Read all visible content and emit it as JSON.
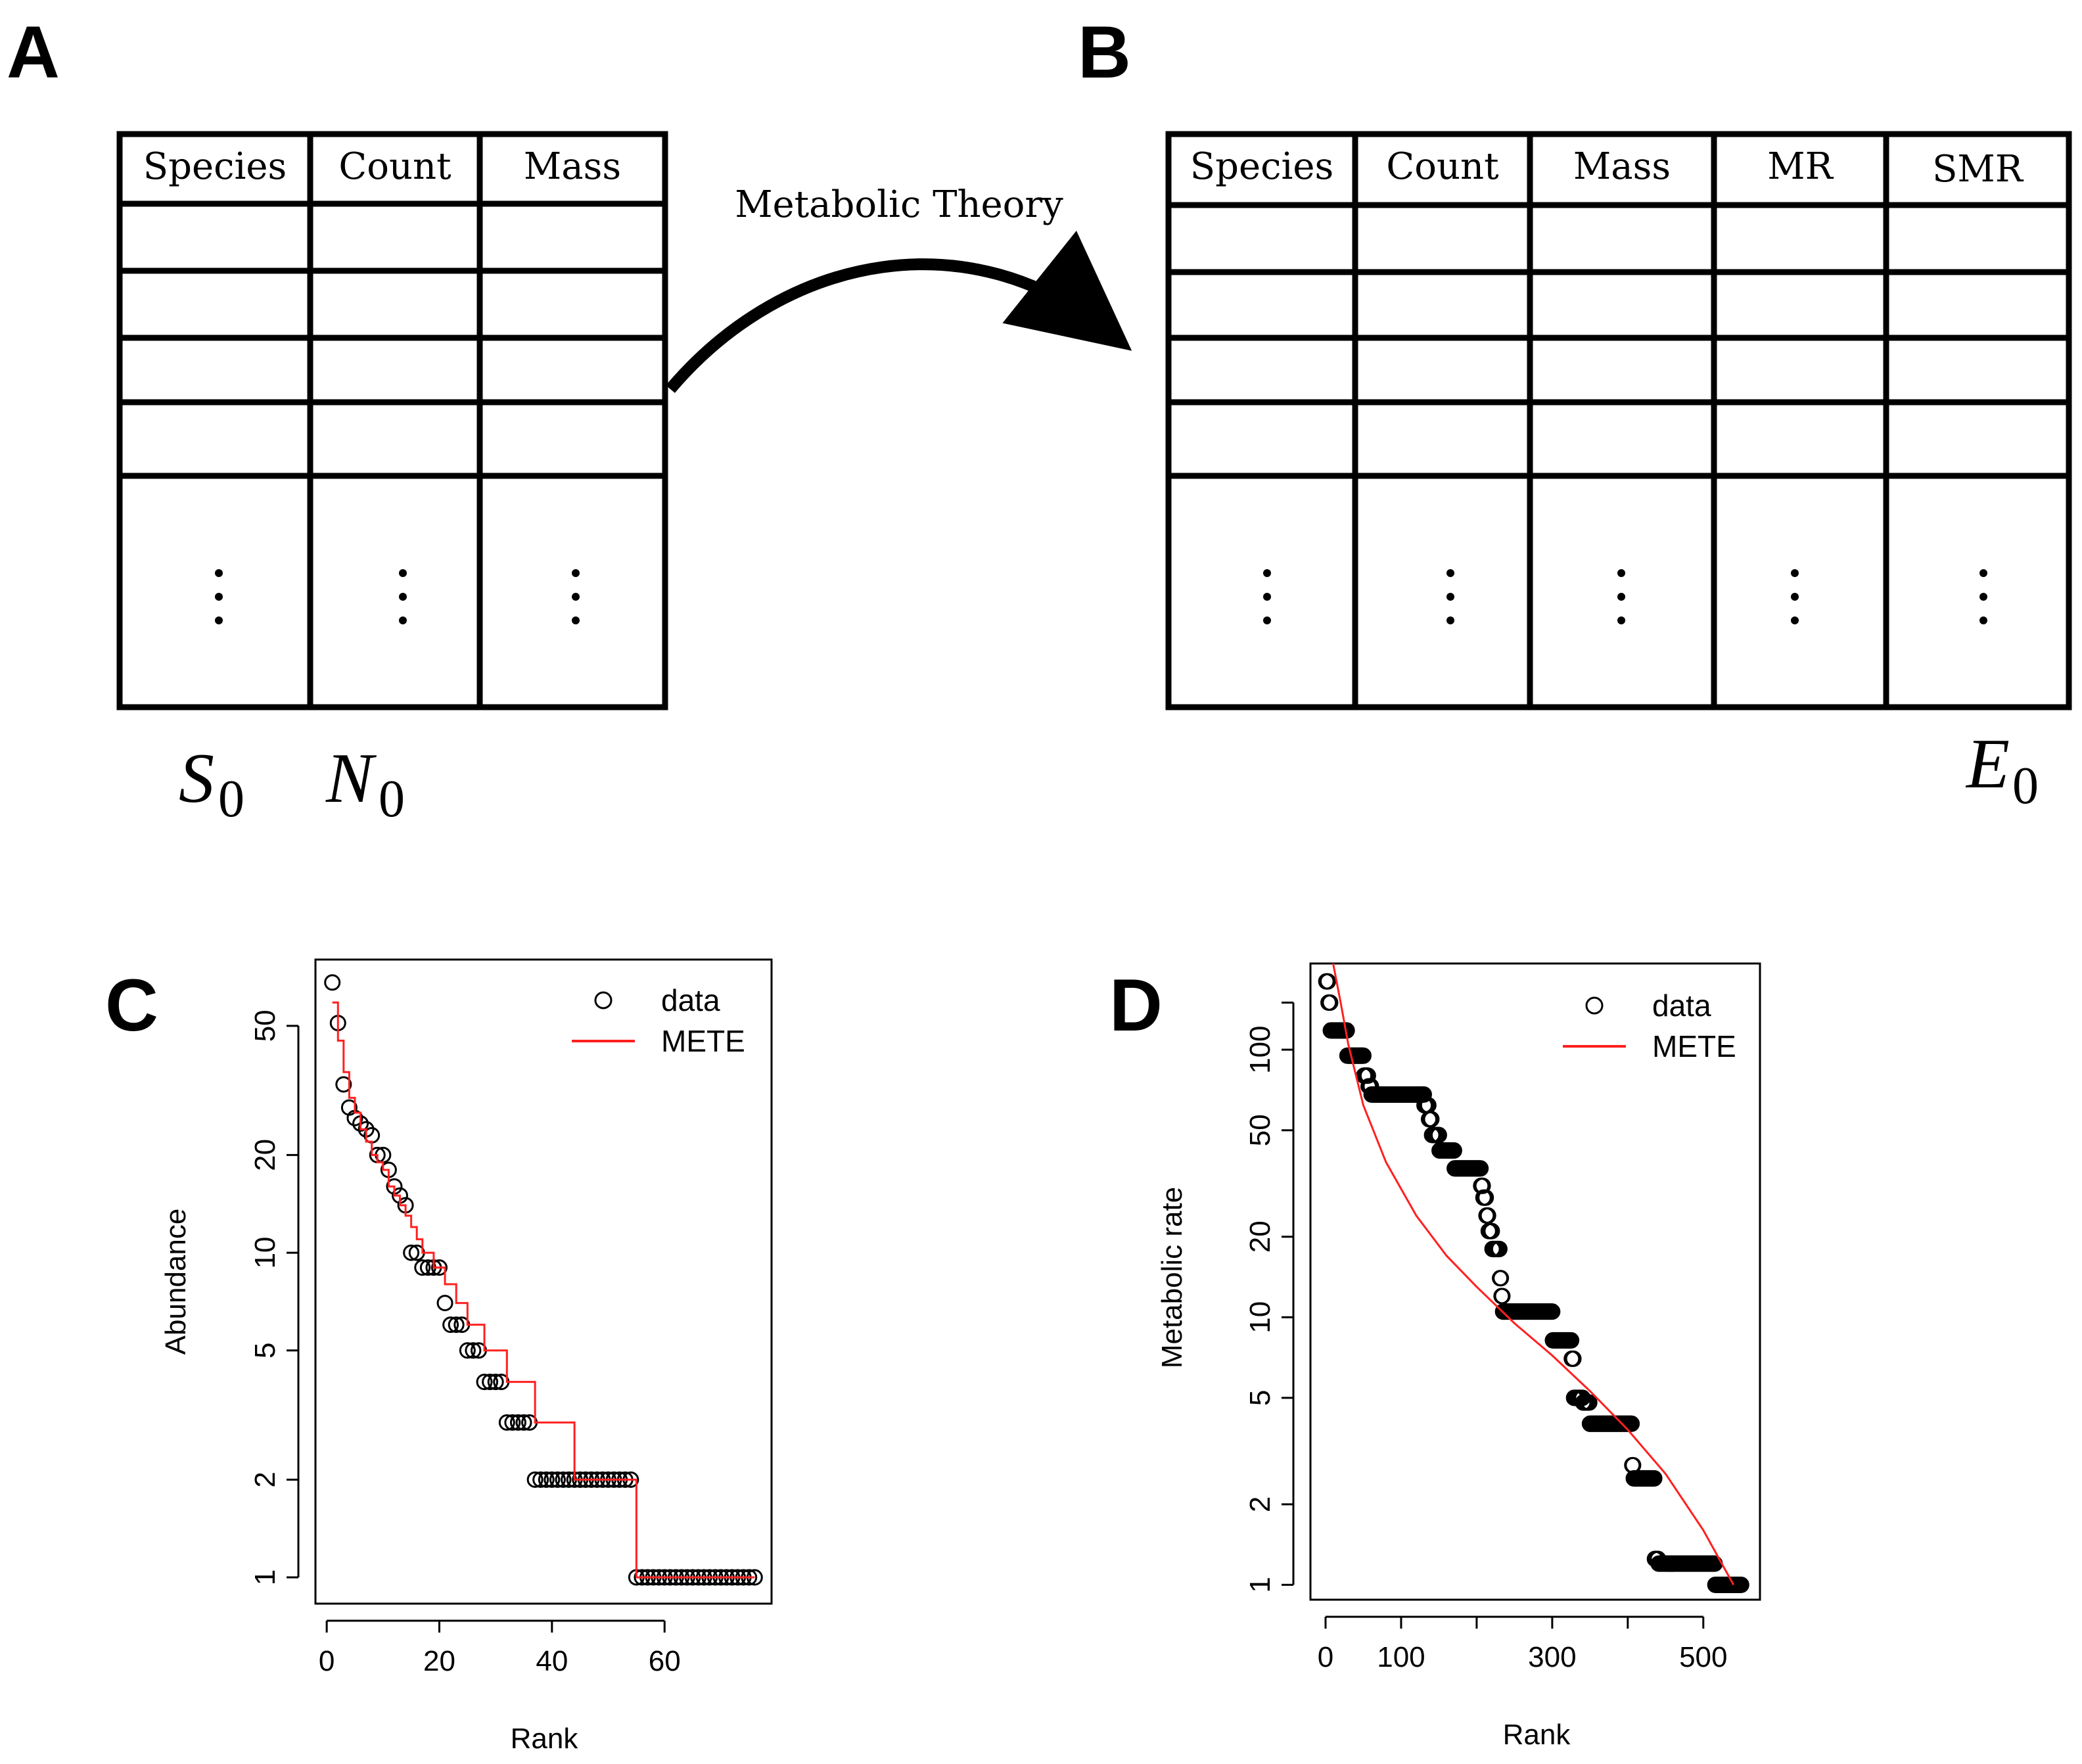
{
  "panels": {
    "a": "A",
    "b": "B",
    "c": "C",
    "d": "D"
  },
  "table_a": {
    "headers": [
      "Species",
      "Count",
      "Mass"
    ],
    "bottom_labels": [
      {
        "var": "S",
        "sub": "0"
      },
      {
        "var": "N",
        "sub": "0"
      }
    ]
  },
  "arrow_label": "Metabolic Theory",
  "table_b": {
    "headers": [
      "Species",
      "Count",
      "Mass",
      "MR",
      "SMR"
    ],
    "bottom_label": {
      "var": "E",
      "sub": "0"
    }
  },
  "chart_data": [
    {
      "type": "scatter",
      "panel": "C",
      "xlabel": "Rank",
      "ylabel": "Abundance",
      "log_y": true,
      "xlim": [
        -2,
        79
      ],
      "ylim": [
        0.83,
        80
      ],
      "x_ticks": [
        0,
        20,
        40,
        60
      ],
      "y_ticks": [
        1,
        2,
        5,
        10,
        20,
        50
      ],
      "legend_position": "top-right",
      "legend": [
        "data",
        "METE"
      ],
      "colors": {
        "data": "#000000",
        "METE": "#ff2020"
      },
      "series": [
        {
          "name": "data",
          "style": "open-circle",
          "x": [
            1,
            2,
            3,
            4,
            5,
            6,
            7,
            8,
            9,
            10,
            11,
            12,
            13,
            14,
            15,
            16,
            17,
            18,
            19,
            20,
            21,
            22,
            23,
            24,
            25,
            26,
            27,
            28,
            29,
            30,
            31,
            32,
            33,
            34,
            35,
            36,
            37,
            38,
            39,
            40,
            41,
            42,
            43,
            44,
            45,
            46,
            47,
            48,
            49,
            50,
            51,
            52,
            53,
            54,
            55,
            56,
            57,
            58,
            59,
            60,
            61,
            62,
            63,
            64,
            65,
            66,
            67,
            68,
            69,
            70,
            71,
            72,
            73,
            74,
            75,
            76
          ],
          "values": [
            68,
            51,
            33,
            28,
            26,
            25,
            24,
            23,
            20,
            20,
            18,
            16,
            15,
            14,
            10,
            10,
            9,
            9,
            9,
            9,
            7,
            6,
            6,
            6,
            5,
            5,
            5,
            4,
            4,
            4,
            4,
            3,
            3,
            3,
            3,
            3,
            2,
            2,
            2,
            2,
            2,
            2,
            2,
            2,
            2,
            2,
            2,
            2,
            2,
            2,
            2,
            2,
            2,
            2,
            1,
            1,
            1,
            1,
            1,
            1,
            1,
            1,
            1,
            1,
            1,
            1,
            1,
            1,
            1,
            1,
            1,
            1,
            1,
            1,
            1,
            1
          ]
        },
        {
          "name": "METE",
          "style": "line",
          "x": [
            1,
            2,
            3,
            4,
            5,
            6,
            7,
            8,
            9,
            10,
            11,
            12,
            13,
            14,
            15,
            16,
            17,
            18,
            19,
            20,
            21,
            22,
            23,
            24,
            25,
            26,
            27,
            28,
            29,
            30,
            31,
            32,
            33,
            34,
            35,
            36,
            37,
            38,
            39,
            40,
            41,
            42,
            43,
            44,
            45,
            46,
            47,
            48,
            49,
            50,
            51,
            52,
            53,
            54,
            55,
            56,
            57,
            58,
            59,
            60,
            61,
            62,
            63,
            64,
            65,
            66,
            67,
            68,
            69,
            70,
            71,
            72,
            73,
            74,
            75,
            76
          ],
          "values": [
            59,
            45,
            36,
            30,
            27,
            24,
            22,
            20,
            19,
            18,
            16,
            15,
            14,
            13,
            12,
            11,
            10,
            10,
            9,
            9,
            8,
            8,
            7,
            7,
            6,
            6,
            6,
            5,
            5,
            5,
            5,
            4,
            4,
            4,
            4,
            4,
            3,
            3,
            3,
            3,
            3,
            3,
            3,
            2,
            2,
            2,
            2,
            2,
            2,
            2,
            2,
            2,
            2,
            2,
            1,
            1,
            1,
            1,
            1,
            1,
            1,
            1,
            1,
            1,
            1,
            1,
            1,
            1,
            1,
            1,
            1,
            1,
            1,
            1,
            1,
            1
          ]
        }
      ]
    },
    {
      "type": "scatter",
      "panel": "D",
      "xlabel": "Rank",
      "ylabel": "Metabolic rate",
      "log_y": true,
      "xlim": [
        -20,
        575
      ],
      "ylim": [
        0.88,
        210
      ],
      "x_ticks": [
        0,
        100,
        200,
        300,
        400,
        500
      ],
      "x_tick_labels": [
        "0",
        "100",
        "",
        "300",
        "",
        "500"
      ],
      "y_ticks": [
        1,
        2,
        5,
        10,
        20,
        50,
        100
      ],
      "y_ticks_unlabeled": [
        150
      ],
      "legend_position": "top-right",
      "legend": [
        "data",
        "METE"
      ],
      "colors": {
        "data": "#000000",
        "METE": "#ff2020"
      },
      "series": [
        {
          "name": "data",
          "style": "open-circle",
          "runs": [
            {
              "x0": 1,
              "x1": 3,
              "value": 180
            },
            {
              "x0": 4,
              "x1": 6,
              "value": 150
            },
            {
              "x0": 7,
              "x1": 28,
              "value": 118
            },
            {
              "x0": 29,
              "x1": 50,
              "value": 95
            },
            {
              "x0": 51,
              "x1": 56,
              "value": 80
            },
            {
              "x0": 57,
              "x1": 60,
              "value": 73
            },
            {
              "x0": 61,
              "x1": 130,
              "value": 68
            },
            {
              "x0": 131,
              "x1": 136,
              "value": 62
            },
            {
              "x0": 137,
              "x1": 140,
              "value": 55
            },
            {
              "x0": 141,
              "x1": 150,
              "value": 48
            },
            {
              "x0": 151,
              "x1": 170,
              "value": 42
            },
            {
              "x0": 171,
              "x1": 205,
              "value": 36
            },
            {
              "x0": 206,
              "x1": 208,
              "value": 31
            },
            {
              "x0": 209,
              "x1": 212,
              "value": 28
            },
            {
              "x0": 213,
              "x1": 215,
              "value": 24
            },
            {
              "x0": 216,
              "x1": 220,
              "value": 21
            },
            {
              "x0": 221,
              "x1": 230,
              "value": 18
            },
            {
              "x0": 231,
              "x1": 232,
              "value": 14
            },
            {
              "x0": 233,
              "x1": 234,
              "value": 12
            },
            {
              "x0": 235,
              "x1": 300,
              "value": 10.5
            },
            {
              "x0": 301,
              "x1": 325,
              "value": 8.2
            },
            {
              "x0": 326,
              "x1": 328,
              "value": 7
            },
            {
              "x0": 329,
              "x1": 340,
              "value": 5
            },
            {
              "x0": 341,
              "x1": 349,
              "value": 4.8
            },
            {
              "x0": 350,
              "x1": 405,
              "value": 4
            },
            {
              "x0": 406,
              "x1": 407,
              "value": 2.8
            },
            {
              "x0": 408,
              "x1": 435,
              "value": 2.5
            },
            {
              "x0": 436,
              "x1": 440,
              "value": 1.25
            },
            {
              "x0": 441,
              "x1": 515,
              "value": 1.2
            },
            {
              "x0": 516,
              "x1": 550,
              "value": 1
            }
          ]
        },
        {
          "name": "METE",
          "style": "line",
          "x": [
            10,
            20,
            30,
            50,
            80,
            120,
            160,
            200,
            250,
            300,
            350,
            400,
            450,
            500,
            540
          ],
          "values": [
            210,
            150,
            105,
            62,
            38,
            24,
            17,
            13,
            9.5,
            7.2,
            5.3,
            3.8,
            2.6,
            1.6,
            1.0
          ]
        }
      ]
    }
  ]
}
